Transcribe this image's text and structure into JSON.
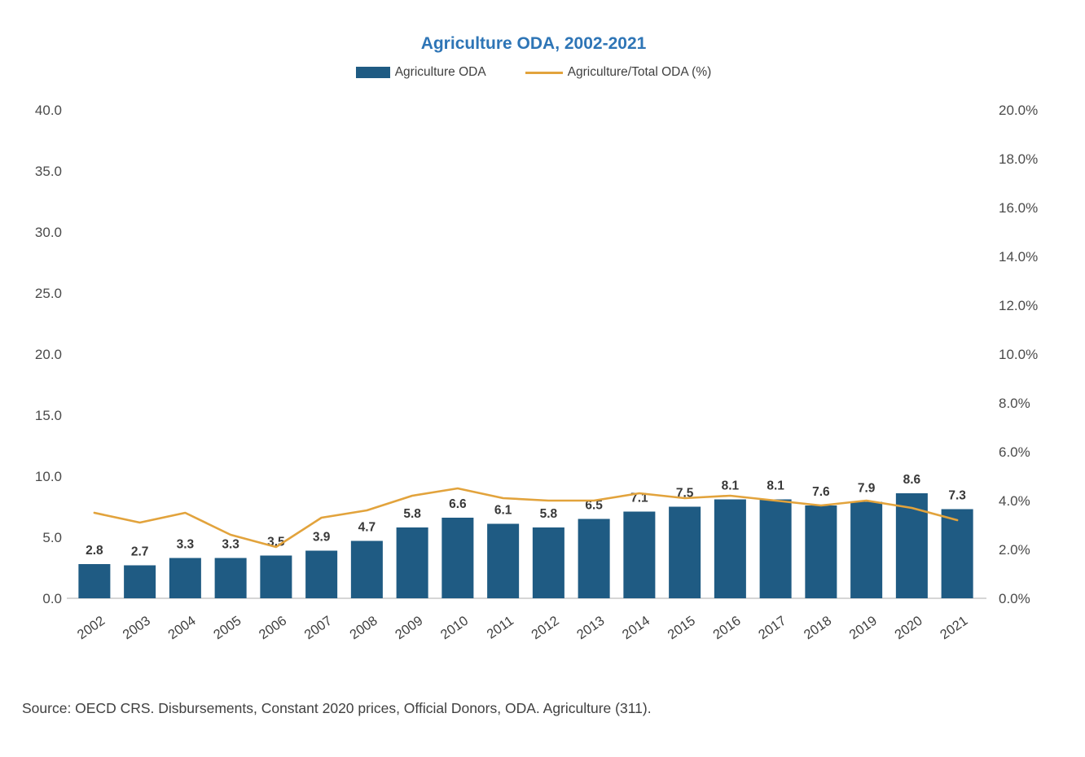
{
  "legend": {
    "bar_label": "Agriculture ODA",
    "line_label": "Agriculture/Total ODA (%)"
  },
  "source": "Source: OECD CRS. Disbursements, Constant 2020 prices, Official Donors, ODA. Agriculture (311).",
  "colors": {
    "bar": "#1F5B83",
    "line": "#E2A33C",
    "title": "#2E75B6",
    "text": "#404040"
  },
  "chart_data": {
    "type": "bar",
    "title": "Agriculture ODA, 2002-2021",
    "categories": [
      "2002",
      "2003",
      "2004",
      "2005",
      "2006",
      "2007",
      "2008",
      "2009",
      "2010",
      "2011",
      "2012",
      "2013",
      "2014",
      "2015",
      "2016",
      "2017",
      "2018",
      "2019",
      "2020",
      "2021"
    ],
    "series": [
      {
        "name": "Agriculture ODA",
        "type": "bar",
        "axis": "left",
        "values": [
          2.8,
          2.7,
          3.3,
          3.3,
          3.5,
          3.9,
          4.7,
          5.8,
          6.6,
          6.1,
          5.8,
          6.5,
          7.1,
          7.5,
          8.1,
          8.1,
          7.6,
          7.9,
          8.6,
          7.3
        ],
        "data_labels": [
          "2.8",
          "2.7",
          "3.3",
          "3.3",
          "3.5",
          "3.9",
          "4.7",
          "5.8",
          "6.6",
          "6.1",
          "5.8",
          "6.5",
          "7.1",
          "7.5",
          "8.1",
          "8.1",
          "7.6",
          "7.9",
          "8.6",
          "7.3"
        ]
      },
      {
        "name": "Agriculture/Total ODA (%)",
        "type": "line",
        "axis": "right",
        "values": [
          3.5,
          3.1,
          3.5,
          2.6,
          2.1,
          3.3,
          3.6,
          4.2,
          4.5,
          4.1,
          4.0,
          4.0,
          4.3,
          4.1,
          4.2,
          4.0,
          3.8,
          4.0,
          3.7,
          3.2
        ]
      }
    ],
    "left_axis": {
      "min": 0,
      "max": 40,
      "step": 5,
      "tick_labels": [
        "40.0",
        "35.0",
        "30.0",
        "25.0",
        "20.0",
        "15.0",
        "10.0",
        "5.0",
        "0.0"
      ]
    },
    "right_axis": {
      "min": 0,
      "max": 20,
      "step": 2,
      "tick_labels": [
        "20.0%",
        "18.0%",
        "16.0%",
        "14.0%",
        "12.0%",
        "10.0%",
        "8.0%",
        "6.0%",
        "4.0%",
        "2.0%",
        "0.0%"
      ]
    },
    "grid": false,
    "legend_position": "top"
  }
}
